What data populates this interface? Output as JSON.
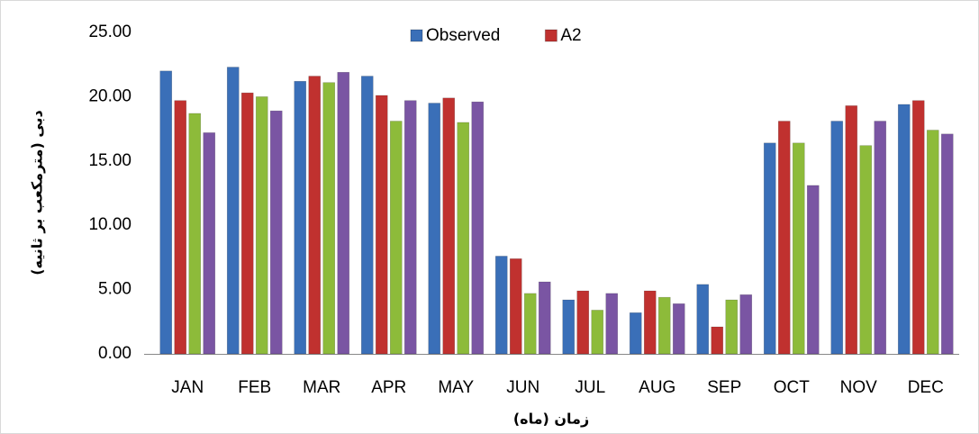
{
  "chart_data": {
    "type": "bar",
    "y_label": "دبی (مترمکعب بر ثانیه)",
    "x_label": "زمان (ماه)",
    "categories": [
      "JAN",
      "FEB",
      "MAR",
      "APR",
      "MAY",
      "JUN",
      "JUL",
      "AUG",
      "SEP",
      "OCT",
      "NOV",
      "DEC"
    ],
    "series": [
      {
        "name": "Observed",
        "color": "#3a6fb8",
        "values": [
          22.0,
          22.3,
          21.2,
          21.6,
          19.5,
          7.6,
          4.2,
          3.2,
          5.4,
          16.4,
          18.1,
          19.4
        ]
      },
      {
        "name": "A2",
        "color": "#c0312f",
        "values": [
          19.7,
          20.3,
          21.6,
          20.1,
          19.9,
          7.4,
          4.9,
          4.9,
          2.1,
          18.1,
          19.3,
          19.7
        ]
      },
      {
        "name": null,
        "color": "#8dbb3a",
        "values": [
          18.7,
          20.0,
          21.1,
          18.1,
          18.0,
          4.7,
          3.4,
          4.4,
          4.2,
          16.4,
          16.2,
          17.4
        ]
      },
      {
        "name": null,
        "color": "#7a55a3",
        "values": [
          17.2,
          18.9,
          21.9,
          19.7,
          19.6,
          5.6,
          4.7,
          3.9,
          4.6,
          13.1,
          18.1,
          17.1
        ]
      }
    ],
    "ylim": [
      0,
      25
    ],
    "yticks": [
      {
        "value": 0,
        "label": "0.00"
      },
      {
        "value": 5,
        "label": "5.00"
      },
      {
        "value": 10,
        "label": "10.00"
      },
      {
        "value": 15,
        "label": "15.00"
      },
      {
        "value": 20,
        "label": "20.00"
      },
      {
        "value": 25,
        "label": "25.00"
      }
    ],
    "legend": "top"
  }
}
